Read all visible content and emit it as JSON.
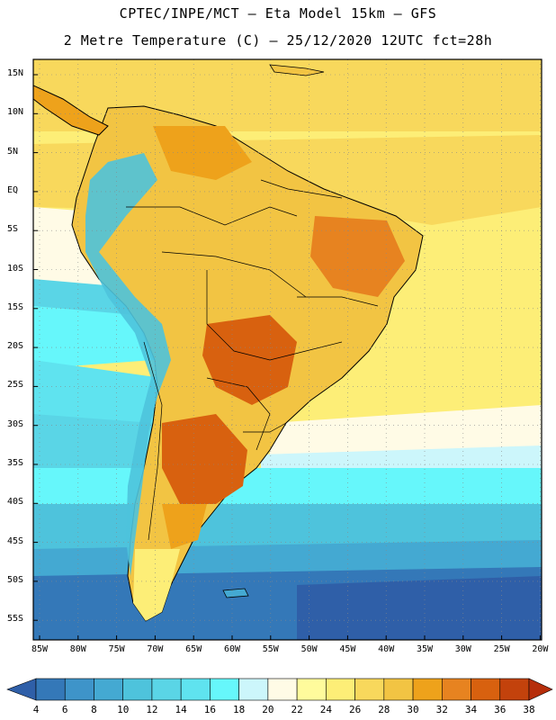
{
  "title_line1": "CPTEC/INPE/MCT –  Eta Model 15km – GFS",
  "title_line2": "2 Metre Temperature (C) – 25/12/2020 12UTC fct=28h",
  "map": {
    "latitude_labels": [
      "15N",
      "10N",
      "5N",
      "EQ",
      "5S",
      "10S",
      "15S",
      "20S",
      "25S",
      "30S",
      "35S",
      "40S",
      "45S",
      "50S",
      "55S"
    ],
    "longitude_labels": [
      "85W",
      "80W",
      "75W",
      "70W",
      "65W",
      "60W",
      "55W",
      "50W",
      "45W",
      "40W",
      "35W",
      "30W",
      "25W",
      "20W"
    ],
    "region": "South America",
    "variable": "2 Metre Temperature",
    "units": "C"
  },
  "colorbar": {
    "labels": [
      "4",
      "6",
      "8",
      "10",
      "12",
      "14",
      "16",
      "18",
      "20",
      "22",
      "24",
      "26",
      "28",
      "30",
      "32",
      "34",
      "36",
      "38"
    ],
    "colors": [
      "#2f5fa8",
      "#3478b8",
      "#3e94c9",
      "#44a9d2",
      "#4ec3dc",
      "#5ad5e6",
      "#5fe3ef",
      "#66f7fb",
      "#ccf6fb",
      "#fffbe6",
      "#fffb9c",
      "#fdee77",
      "#f8d85c",
      "#f2c443",
      "#eea21b",
      "#e78320",
      "#d8610f",
      "#c3420c",
      "#b62e0b"
    ]
  }
}
